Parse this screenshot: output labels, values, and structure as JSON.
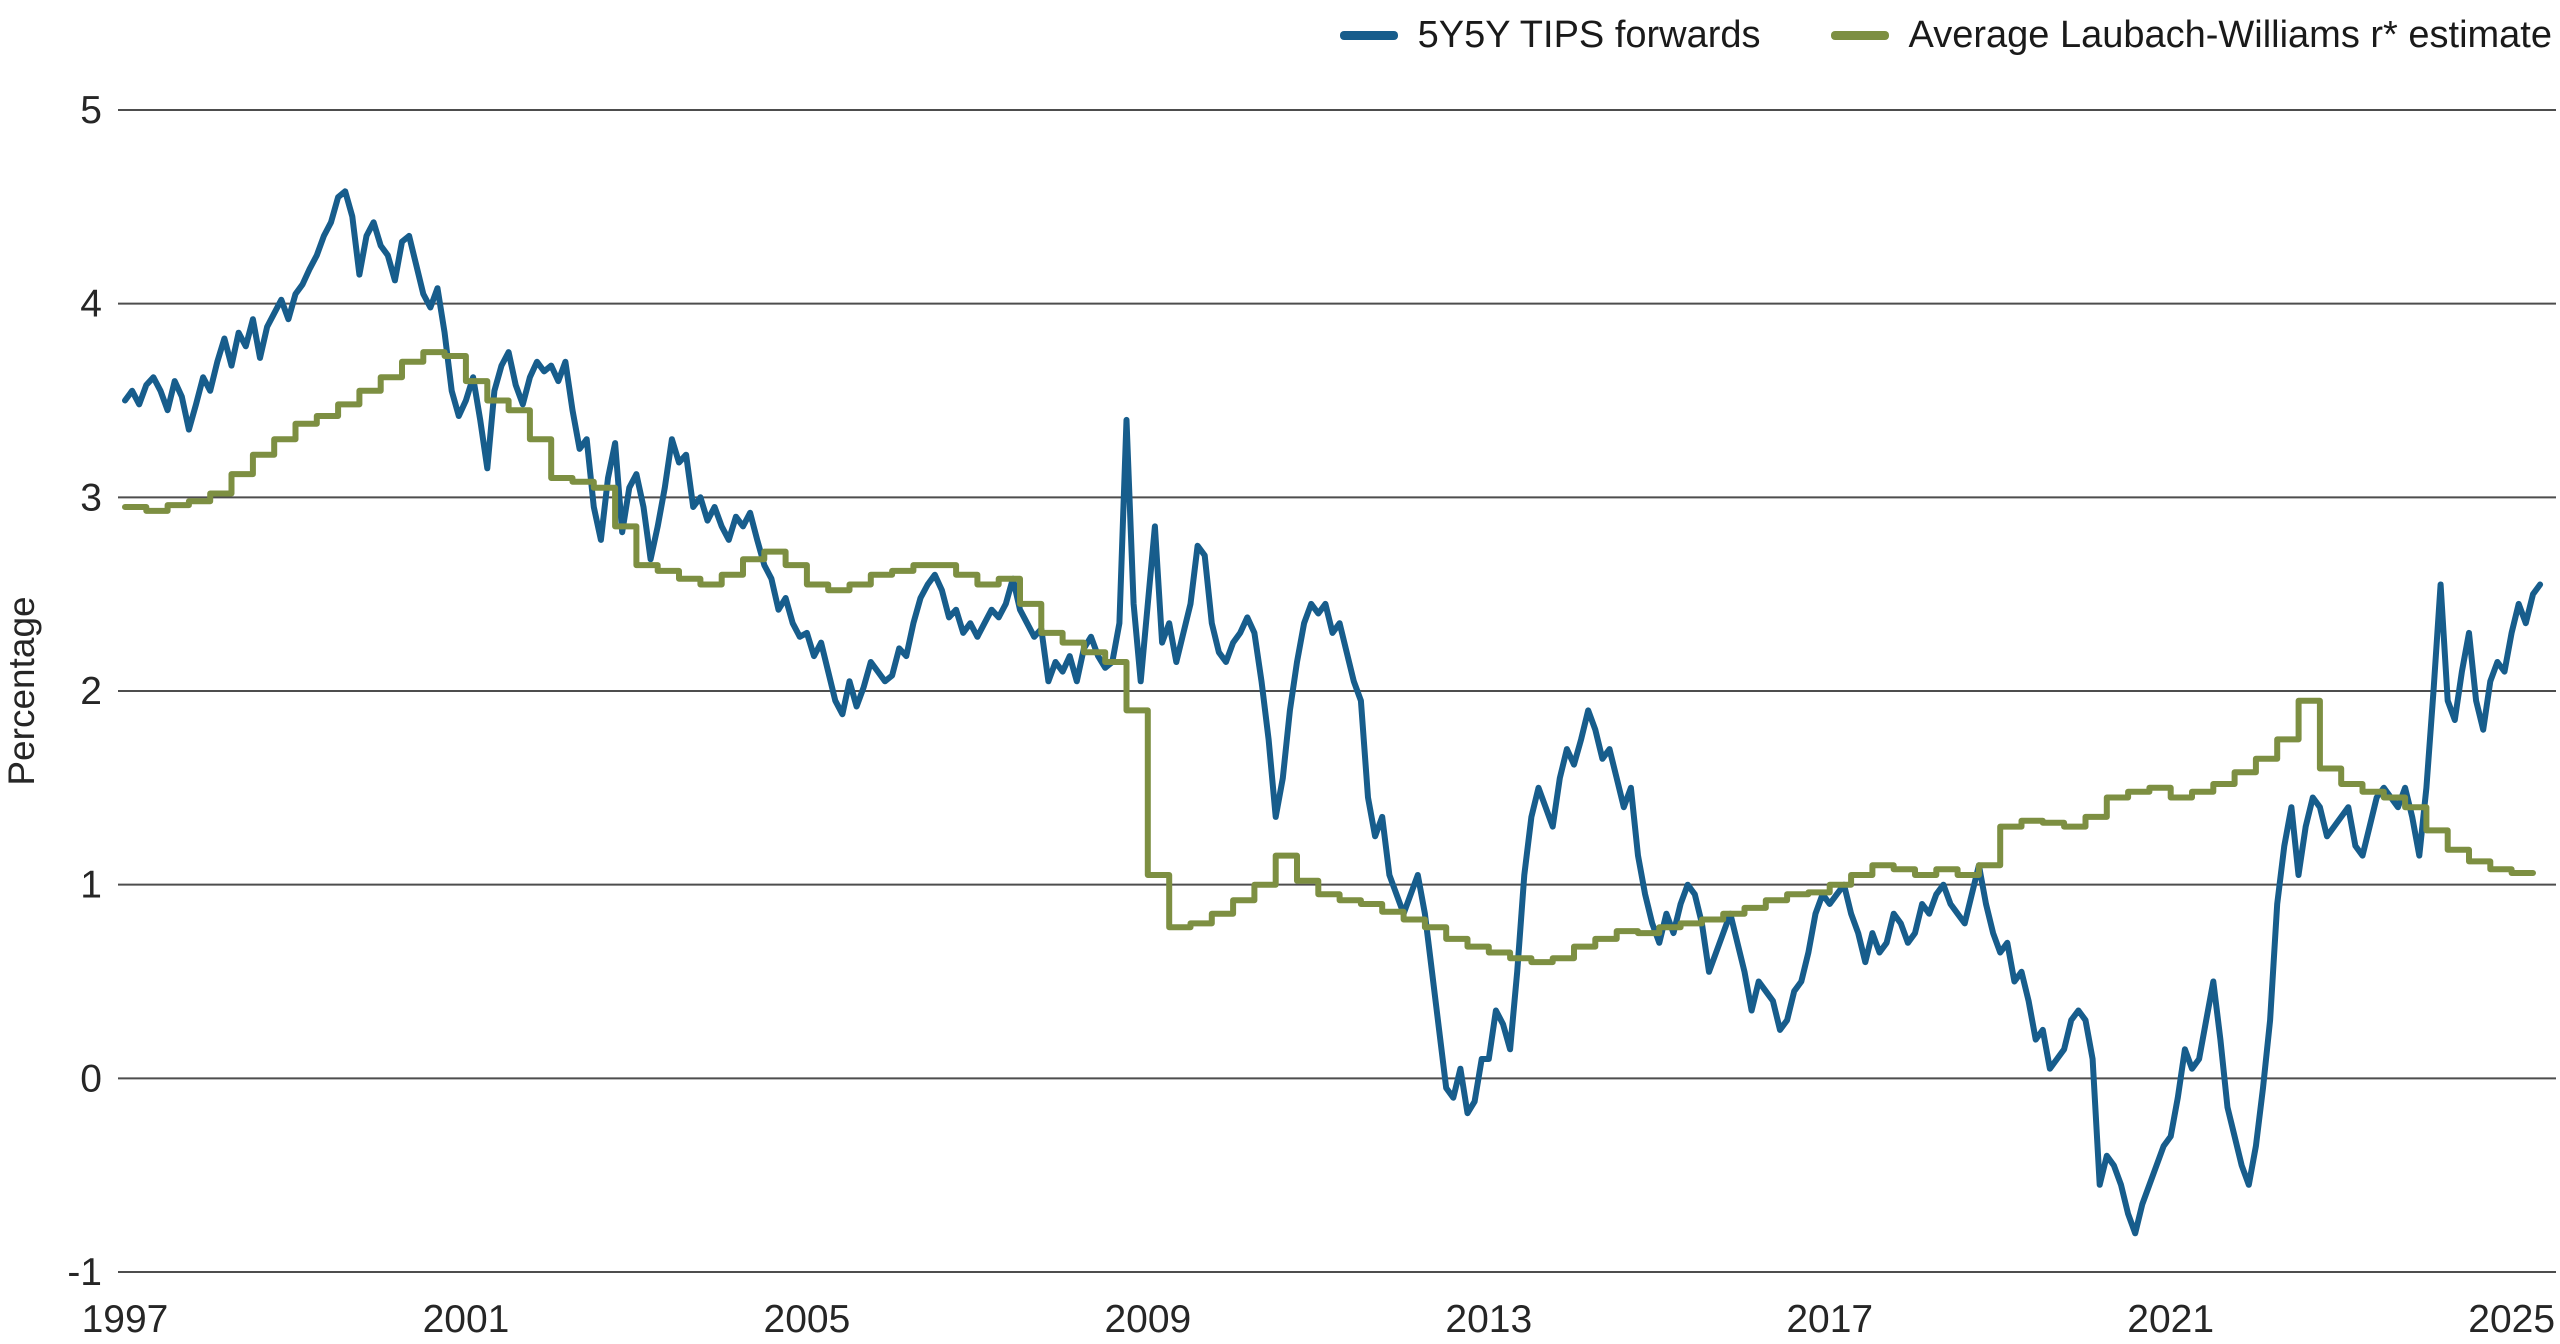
{
  "chart_data": {
    "type": "line",
    "title": "",
    "ylabel": "Percentage",
    "xlabel": "",
    "grid": "horizontal",
    "grid_color": "#4d4d4d",
    "text_color": "#262626",
    "background": "#ffffff",
    "xlim": [
      1997,
      2025.45
    ],
    "ylim": [
      -1,
      5
    ],
    "x_ticks": [
      1997,
      2001,
      2005,
      2009,
      2013,
      2017,
      2021,
      2025
    ],
    "y_ticks": [
      5,
      4,
      3,
      2,
      1,
      0,
      -1
    ],
    "legend_position": "top-right",
    "series": [
      {
        "name": "5Y5Y TIPS forwards",
        "color": "#175d8c",
        "step": false,
        "x_start": 1997.0,
        "x_interval": 0.0833333,
        "values": [
          3.5,
          3.55,
          3.48,
          3.58,
          3.62,
          3.55,
          3.45,
          3.6,
          3.52,
          3.35,
          3.48,
          3.62,
          3.55,
          3.7,
          3.82,
          3.68,
          3.85,
          3.78,
          3.92,
          3.72,
          3.88,
          3.95,
          4.02,
          3.92,
          4.05,
          4.1,
          4.18,
          4.25,
          4.35,
          4.42,
          4.55,
          4.58,
          4.45,
          4.15,
          4.35,
          4.42,
          4.3,
          4.25,
          4.12,
          4.32,
          4.35,
          4.2,
          4.05,
          3.98,
          4.08,
          3.85,
          3.55,
          3.42,
          3.5,
          3.62,
          3.4,
          3.15,
          3.55,
          3.68,
          3.75,
          3.58,
          3.48,
          3.62,
          3.7,
          3.65,
          3.68,
          3.6,
          3.7,
          3.45,
          3.25,
          3.3,
          2.95,
          2.78,
          3.1,
          3.28,
          2.82,
          3.05,
          3.12,
          2.95,
          2.68,
          2.85,
          3.05,
          3.3,
          3.18,
          3.22,
          2.95,
          3.0,
          2.88,
          2.95,
          2.85,
          2.78,
          2.9,
          2.85,
          2.92,
          2.78,
          2.65,
          2.58,
          2.42,
          2.48,
          2.35,
          2.28,
          2.3,
          2.18,
          2.25,
          2.1,
          1.95,
          1.88,
          2.05,
          1.92,
          2.02,
          2.15,
          2.1,
          2.05,
          2.08,
          2.22,
          2.18,
          2.35,
          2.48,
          2.55,
          2.6,
          2.52,
          2.38,
          2.42,
          2.3,
          2.35,
          2.28,
          2.35,
          2.42,
          2.38,
          2.45,
          2.58,
          2.42,
          2.35,
          2.28,
          2.32,
          2.05,
          2.15,
          2.1,
          2.18,
          2.05,
          2.22,
          2.28,
          2.18,
          2.12,
          2.15,
          2.35,
          3.4,
          2.45,
          2.05,
          2.45,
          2.85,
          2.25,
          2.35,
          2.15,
          2.3,
          2.45,
          2.75,
          2.7,
          2.35,
          2.2,
          2.15,
          2.25,
          2.3,
          2.38,
          2.3,
          2.05,
          1.75,
          1.35,
          1.55,
          1.9,
          2.15,
          2.35,
          2.45,
          2.4,
          2.45,
          2.3,
          2.35,
          2.2,
          2.05,
          1.95,
          1.45,
          1.25,
          1.35,
          1.05,
          0.95,
          0.85,
          0.95,
          1.05,
          0.85,
          0.55,
          0.25,
          -0.05,
          -0.1,
          0.05,
          -0.18,
          -0.12,
          0.1,
          0.1,
          0.35,
          0.28,
          0.15,
          0.55,
          1.05,
          1.35,
          1.5,
          1.4,
          1.3,
          1.55,
          1.7,
          1.62,
          1.75,
          1.9,
          1.8,
          1.65,
          1.7,
          1.55,
          1.4,
          1.5,
          1.15,
          0.95,
          0.8,
          0.7,
          0.85,
          0.75,
          0.9,
          1.0,
          0.95,
          0.8,
          0.55,
          0.65,
          0.75,
          0.85,
          0.7,
          0.55,
          0.35,
          0.5,
          0.45,
          0.4,
          0.25,
          0.3,
          0.45,
          0.5,
          0.65,
          0.85,
          0.95,
          0.9,
          0.95,
          1.0,
          0.85,
          0.75,
          0.6,
          0.75,
          0.65,
          0.7,
          0.85,
          0.8,
          0.7,
          0.75,
          0.9,
          0.85,
          0.95,
          1.0,
          0.9,
          0.85,
          0.8,
          0.95,
          1.1,
          0.9,
          0.75,
          0.65,
          0.7,
          0.5,
          0.55,
          0.4,
          0.2,
          0.25,
          0.05,
          0.1,
          0.15,
          0.3,
          0.35,
          0.3,
          0.1,
          -0.55,
          -0.4,
          -0.45,
          -0.55,
          -0.7,
          -0.8,
          -0.65,
          -0.55,
          -0.45,
          -0.35,
          -0.3,
          -0.1,
          0.15,
          0.05,
          0.1,
          0.3,
          0.5,
          0.2,
          -0.15,
          -0.3,
          -0.45,
          -0.55,
          -0.35,
          -0.05,
          0.3,
          0.9,
          1.2,
          1.4,
          1.05,
          1.3,
          1.45,
          1.4,
          1.25,
          1.3,
          1.35,
          1.4,
          1.2,
          1.15,
          1.3,
          1.45,
          1.5,
          1.45,
          1.4,
          1.5,
          1.35,
          1.15,
          1.5,
          2.0,
          2.55,
          1.95,
          1.85,
          2.1,
          2.3,
          1.95,
          1.8,
          2.05,
          2.15,
          2.1,
          2.3,
          2.45,
          2.35,
          2.5,
          2.55
        ]
      },
      {
        "name": "Average Laubach-Williams r* estimate",
        "color": "#7d8f42",
        "step": true,
        "x_start": 1997.0,
        "x_interval": 0.25,
        "values": [
          2.95,
          2.93,
          2.96,
          2.98,
          3.02,
          3.12,
          3.22,
          3.3,
          3.38,
          3.42,
          3.48,
          3.55,
          3.62,
          3.7,
          3.75,
          3.73,
          3.6,
          3.5,
          3.45,
          3.3,
          3.1,
          3.08,
          3.05,
          2.85,
          2.65,
          2.62,
          2.58,
          2.55,
          2.6,
          2.68,
          2.72,
          2.65,
          2.55,
          2.52,
          2.55,
          2.6,
          2.62,
          2.65,
          2.65,
          2.6,
          2.55,
          2.58,
          2.45,
          2.3,
          2.25,
          2.2,
          2.15,
          1.9,
          1.05,
          0.78,
          0.8,
          0.85,
          0.92,
          1.0,
          1.15,
          1.02,
          0.95,
          0.92,
          0.9,
          0.86,
          0.82,
          0.78,
          0.72,
          0.68,
          0.65,
          0.62,
          0.6,
          0.62,
          0.68,
          0.72,
          0.76,
          0.75,
          0.78,
          0.8,
          0.82,
          0.85,
          0.88,
          0.92,
          0.95,
          0.96,
          1.0,
          1.05,
          1.1,
          1.08,
          1.05,
          1.08,
          1.05,
          1.1,
          1.3,
          1.33,
          1.32,
          1.3,
          1.35,
          1.45,
          1.48,
          1.5,
          1.45,
          1.48,
          1.52,
          1.58,
          1.65,
          1.75,
          1.95,
          1.6,
          1.52,
          1.48,
          1.45,
          1.4,
          1.28,
          1.18,
          1.12,
          1.08,
          1.06
        ]
      }
    ]
  }
}
